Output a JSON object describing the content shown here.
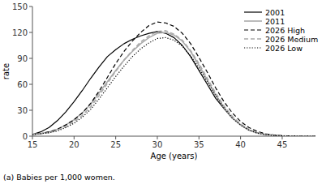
{
  "chart_data": {
    "type": "line",
    "xlabel": "Age (years)",
    "ylabel": "rate",
    "footnote": "(a) Babies per 1,000 women.",
    "x": [
      15,
      16,
      17,
      18,
      19,
      20,
      21,
      22,
      23,
      24,
      25,
      26,
      27,
      28,
      29,
      30,
      31,
      32,
      33,
      34,
      35,
      36,
      37,
      38,
      39,
      40,
      41,
      42,
      43,
      44,
      45,
      46,
      47,
      48,
      49
    ],
    "xlim": [
      15,
      49
    ],
    "xticks": [
      15,
      20,
      25,
      30,
      35,
      40,
      45
    ],
    "ylim": [
      0,
      150
    ],
    "yticks": [
      0,
      30,
      60,
      90,
      120,
      150
    ],
    "grid": false,
    "legend": "upper right",
    "series": [
      {
        "name": "2001",
        "color": "#000000",
        "line_style": "solid",
        "values": [
          2,
          5,
          10,
          18,
          28,
          40,
          53,
          67,
          80,
          92,
          100,
          107,
          112,
          116,
          119,
          121,
          119,
          114,
          105,
          92,
          76,
          60,
          44,
          32,
          21,
          13,
          7,
          4,
          2,
          1,
          0.4,
          0.2,
          0.1,
          0,
          0
        ]
      },
      {
        "name": "2011",
        "color": "#aaaaaa",
        "line_style": "solid",
        "values": [
          2,
          3,
          5,
          8,
          13,
          19,
          27,
          37,
          50,
          63,
          76,
          88,
          98,
          107,
          114,
          119,
          120,
          117,
          110,
          98,
          82,
          65,
          48,
          33,
          21,
          13,
          7,
          3.5,
          1.8,
          0.8,
          0.3,
          0.1,
          0,
          0,
          0
        ]
      },
      {
        "name": "2026 High",
        "color": "#000000",
        "line_style": "dashed",
        "values": [
          2,
          3,
          5,
          8,
          13,
          19,
          27,
          38,
          52,
          68,
          84,
          98,
          110,
          120,
          128,
          132,
          131,
          127,
          119,
          107,
          91,
          74,
          56,
          40,
          27,
          17,
          10,
          5.5,
          2.8,
          1.3,
          0.5,
          0.2,
          0,
          0,
          0
        ]
      },
      {
        "name": "2026 Medium",
        "color": "#aaaaaa",
        "line_style": "dashed",
        "values": [
          2,
          3,
          4,
          7,
          11,
          17,
          24,
          34,
          47,
          61,
          75,
          88,
          99,
          109,
          116,
          121,
          122,
          118,
          111,
          99,
          84,
          67,
          50,
          35,
          23,
          14,
          8,
          4,
          2,
          0.9,
          0.4,
          0.1,
          0,
          0,
          0
        ]
      },
      {
        "name": "2026 Low",
        "color": "#000000",
        "line_style": "dotted",
        "values": [
          2,
          3,
          4,
          6,
          10,
          15,
          22,
          31,
          43,
          56,
          69,
          81,
          92,
          101,
          108,
          113,
          114,
          111,
          104,
          93,
          79,
          63,
          47,
          33,
          21,
          13,
          7,
          3.5,
          1.7,
          0.8,
          0.3,
          0.1,
          0,
          0,
          0
        ]
      }
    ]
  }
}
